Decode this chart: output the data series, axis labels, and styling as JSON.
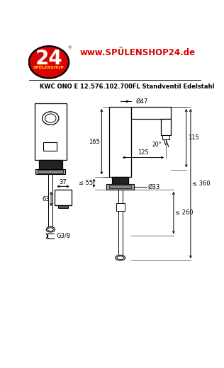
{
  "bg_color": "#ffffff",
  "website": "www.SPÜLENSHOP24.de",
  "title": "KWC ONO E 12.576.102.700FL Standventil Edelstahl",
  "logo_24": "24",
  "logo_sub": "SPÜLENSHOP",
  "d47": "Ø47",
  "dim_165": "165",
  "dim_20deg": "20°",
  "dim_115": "115",
  "dim_125": "125",
  "dim_55": "≤ 55",
  "dim_33": "Ø33",
  "dim_260": "≤ 260",
  "dim_360": "≤ 360",
  "dim_37": "37",
  "dim_63": "63",
  "dim_g38": "G3/8"
}
